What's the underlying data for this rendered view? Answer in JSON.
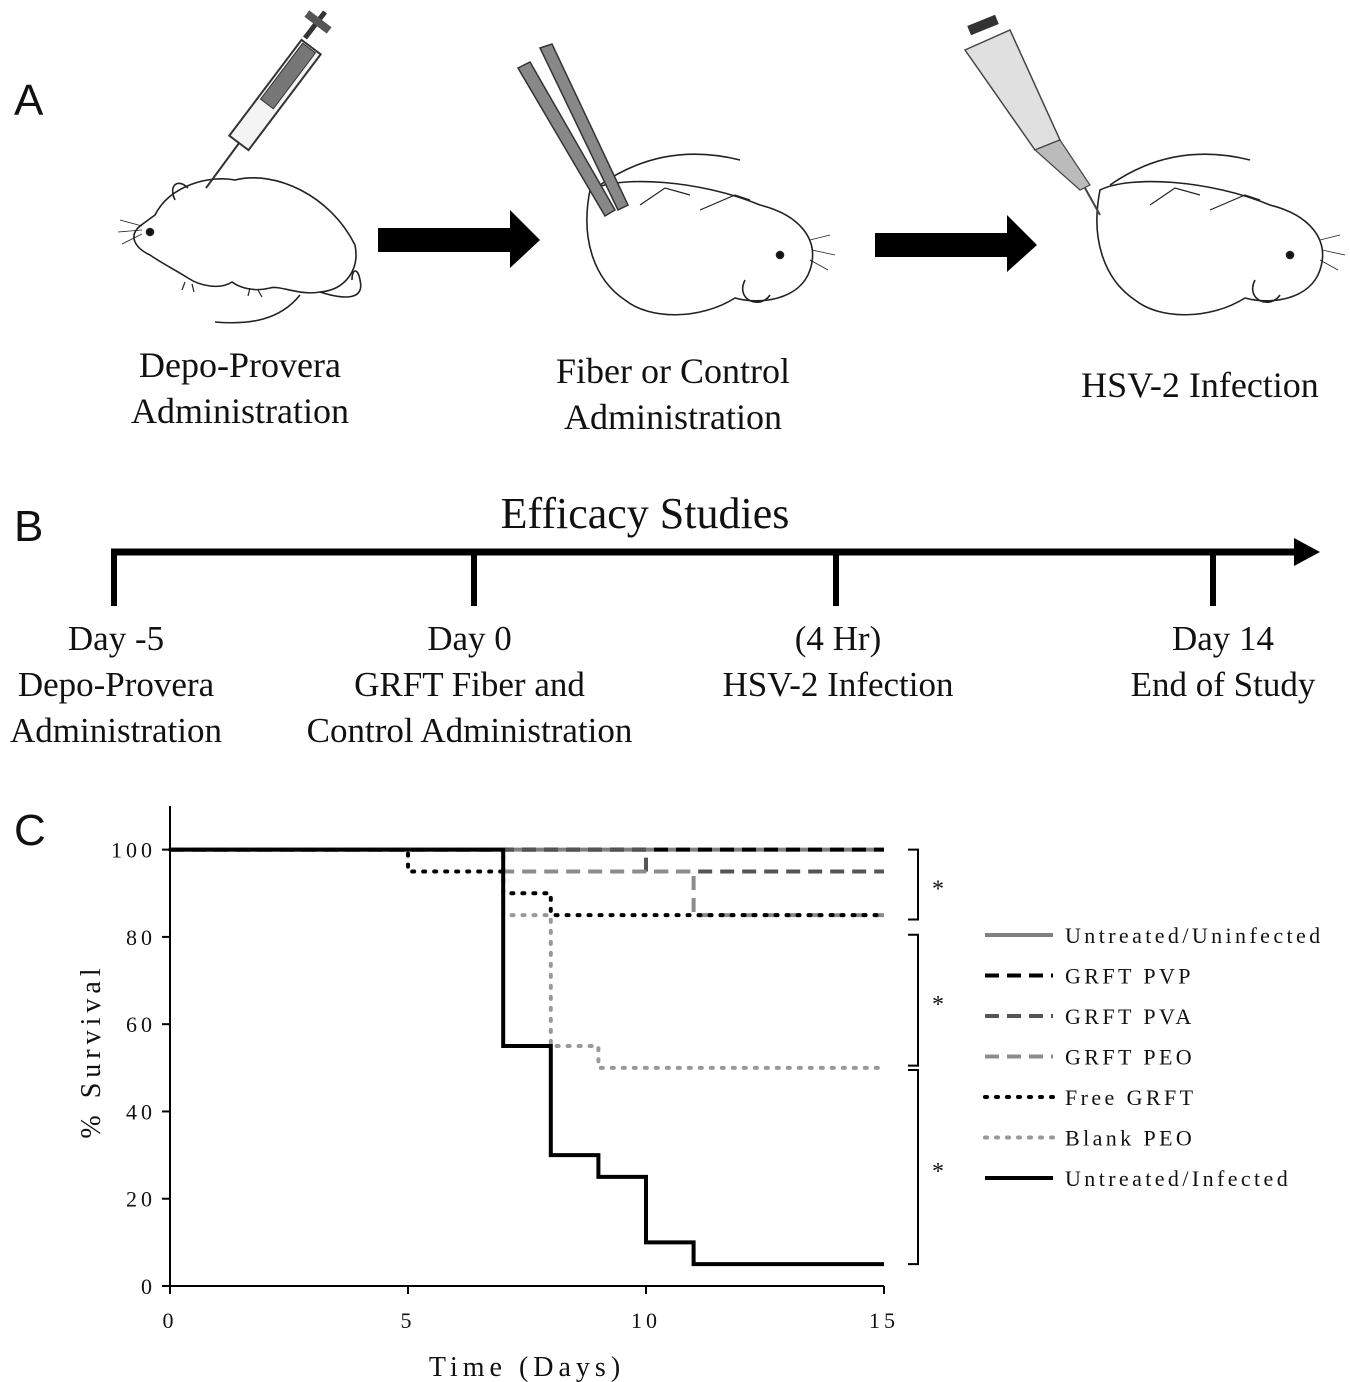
{
  "panelA": {
    "letter": "A",
    "steps": [
      {
        "line1": "Depo-Provera",
        "line2": "Administration"
      },
      {
        "line1": "Fiber or Control",
        "line2": "Administration"
      },
      {
        "line1": "HSV-2 Infection",
        "line2": ""
      }
    ]
  },
  "panelB": {
    "letter": "B",
    "title": "Efficacy Studies",
    "timepoints": [
      {
        "line1": "Day -5",
        "line2": "Depo-Provera",
        "line3": "Administration"
      },
      {
        "line1": "Day 0",
        "line2": "GRFT Fiber and",
        "line3": "Control Administration"
      },
      {
        "line1": "(4 Hr)",
        "line2": "HSV-2 Infection",
        "line3": ""
      },
      {
        "line1": "Day 14",
        "line2": "End of Study",
        "line3": ""
      }
    ]
  },
  "panelC": {
    "letter": "C",
    "significance_marks": [
      "*",
      "*",
      "*"
    ]
  },
  "chart_data": {
    "type": "line",
    "title": "",
    "xlabel": "Time (Days)",
    "ylabel": "% Survival",
    "xlim": [
      0,
      15
    ],
    "ylim": [
      0,
      110
    ],
    "xticks": [
      0,
      5,
      10,
      15
    ],
    "yticks": [
      0,
      20,
      40,
      60,
      80,
      100
    ],
    "xtick_labels": [
      "0",
      "5",
      "10",
      "15"
    ],
    "ytick_labels": [
      "0",
      "20",
      "40",
      "60",
      "80",
      "100"
    ],
    "legend_position": "right",
    "series": [
      {
        "name": "Untreated/Uninfected",
        "color": "#808080",
        "dash": "solid",
        "x": [
          0,
          15
        ],
        "y": [
          100,
          100
        ]
      },
      {
        "name": "GRFT PVP",
        "color": "#000000",
        "dash": "dashed",
        "x": [
          0,
          15
        ],
        "y": [
          100,
          100
        ]
      },
      {
        "name": "GRFT PVA",
        "color": "#555555",
        "dash": "dashed",
        "x": [
          0,
          10,
          10,
          15
        ],
        "y": [
          100,
          100,
          95,
          95
        ]
      },
      {
        "name": "GRFT PEO",
        "color": "#8c8c8c",
        "dash": "dashed",
        "x": [
          0,
          7,
          7,
          11,
          11,
          15
        ],
        "y": [
          100,
          100,
          95,
          95,
          85,
          85
        ]
      },
      {
        "name": "Free GRFT",
        "color": "#000000",
        "dash": "dotted",
        "x": [
          0,
          5,
          5,
          7,
          7,
          8,
          8,
          15
        ],
        "y": [
          100,
          100,
          95,
          95,
          90,
          90,
          85,
          85
        ]
      },
      {
        "name": "Blank PEO",
        "color": "#999999",
        "dash": "dotted",
        "x": [
          0,
          7,
          7,
          8,
          8,
          9,
          9,
          15
        ],
        "y": [
          100,
          100,
          85,
          85,
          55,
          55,
          50,
          50
        ]
      },
      {
        "name": "Untreated/Infected",
        "color": "#000000",
        "dash": "solid",
        "x": [
          0,
          7,
          7,
          8,
          8,
          9,
          9,
          10,
          10,
          11,
          11,
          15
        ],
        "y": [
          100,
          100,
          55,
          55,
          30,
          30,
          25,
          25,
          10,
          10,
          5,
          5
        ]
      }
    ]
  }
}
